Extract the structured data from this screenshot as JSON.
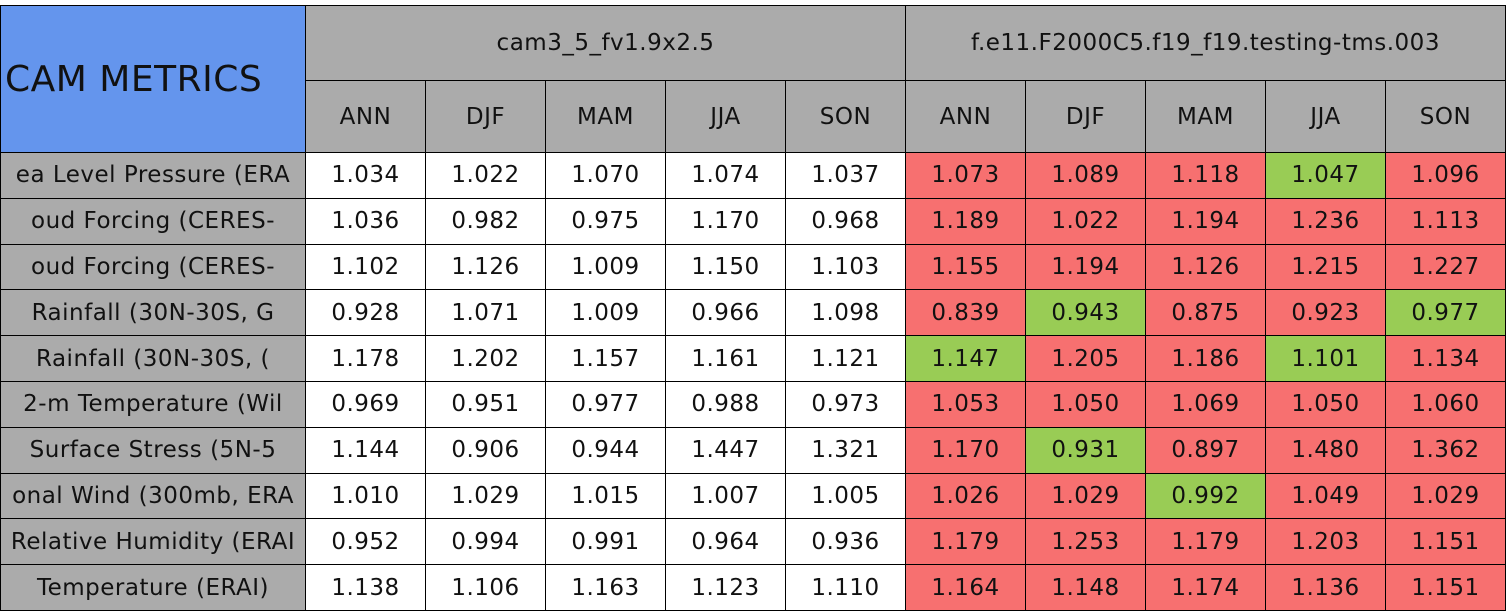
{
  "header": {
    "title": "CAM METRICS",
    "groups": [
      "cam3_5_fv1.9x2.5",
      "f.e11.F2000C5.f19_f19.testing-tms.003"
    ],
    "seasons": [
      "ANN",
      "DJF",
      "MAM",
      "JJA",
      "SON"
    ]
  },
  "table": {
    "rows": [
      {
        "label": "ea Level Pressure (ERA",
        "values": [
          "1.034",
          "1.022",
          "1.070",
          "1.074",
          "1.037",
          "1.073",
          "1.089",
          "1.118",
          "1.047",
          "1.096"
        ],
        "colors": [
          "#f77070",
          "#f77070",
          "#f77070",
          "#99cc55",
          "#f77070"
        ]
      },
      {
        "label": "oud Forcing (CERES-",
        "values": [
          "1.036",
          "0.982",
          "0.975",
          "1.170",
          "0.968",
          "1.189",
          "1.022",
          "1.194",
          "1.236",
          "1.113"
        ],
        "colors": [
          "#f77070",
          "#f77070",
          "#f77070",
          "#f77070",
          "#f77070"
        ]
      },
      {
        "label": "oud Forcing (CERES-",
        "values": [
          "1.102",
          "1.126",
          "1.009",
          "1.150",
          "1.103",
          "1.155",
          "1.194",
          "1.126",
          "1.215",
          "1.227"
        ],
        "colors": [
          "#f77070",
          "#f77070",
          "#f77070",
          "#f77070",
          "#f77070"
        ]
      },
      {
        "label": "Rainfall (30N-30S, G",
        "values": [
          "0.928",
          "1.071",
          "1.009",
          "0.966",
          "1.098",
          "0.839",
          "0.943",
          "0.875",
          "0.923",
          "0.977"
        ],
        "colors": [
          "#f77070",
          "#99cc55",
          "#f77070",
          "#f77070",
          "#99cc55"
        ]
      },
      {
        "label": "Rainfall (30N-30S, (",
        "values": [
          "1.178",
          "1.202",
          "1.157",
          "1.161",
          "1.121",
          "1.147",
          "1.205",
          "1.186",
          "1.101",
          "1.134"
        ],
        "colors": [
          "#99cc55",
          "#f77070",
          "#f77070",
          "#99cc55",
          "#f77070"
        ]
      },
      {
        "label": "2-m Temperature (Wil",
        "values": [
          "0.969",
          "0.951",
          "0.977",
          "0.988",
          "0.973",
          "1.053",
          "1.050",
          "1.069",
          "1.050",
          "1.060"
        ],
        "colors": [
          "#f77070",
          "#f77070",
          "#f77070",
          "#f77070",
          "#f77070"
        ]
      },
      {
        "label": "Surface Stress (5N-5",
        "values": [
          "1.144",
          "0.906",
          "0.944",
          "1.447",
          "1.321",
          "1.170",
          "0.931",
          "0.897",
          "1.480",
          "1.362"
        ],
        "colors": [
          "#f77070",
          "#99cc55",
          "#f77070",
          "#f77070",
          "#f77070"
        ]
      },
      {
        "label": "onal Wind (300mb, ERA",
        "values": [
          "1.010",
          "1.029",
          "1.015",
          "1.007",
          "1.005",
          "1.026",
          "1.029",
          "0.992",
          "1.049",
          "1.029"
        ],
        "colors": [
          "#f77070",
          "#f77070",
          "#99cc55",
          "#f77070",
          "#f77070"
        ]
      },
      {
        "label": "Relative Humidity (ERAI",
        "values": [
          "0.952",
          "0.994",
          "0.991",
          "0.964",
          "0.936",
          "1.179",
          "1.253",
          "1.179",
          "1.203",
          "1.151"
        ],
        "colors": [
          "#f77070",
          "#f77070",
          "#f77070",
          "#f77070",
          "#f77070"
        ]
      },
      {
        "label": "Temperature (ERAI)",
        "values": [
          "1.138",
          "1.106",
          "1.163",
          "1.123",
          "1.110",
          "1.164",
          "1.148",
          "1.174",
          "1.136",
          "1.151"
        ],
        "colors": [
          "#f77070",
          "#f77070",
          "#f77070",
          "#f77070",
          "#f77070"
        ]
      }
    ]
  }
}
